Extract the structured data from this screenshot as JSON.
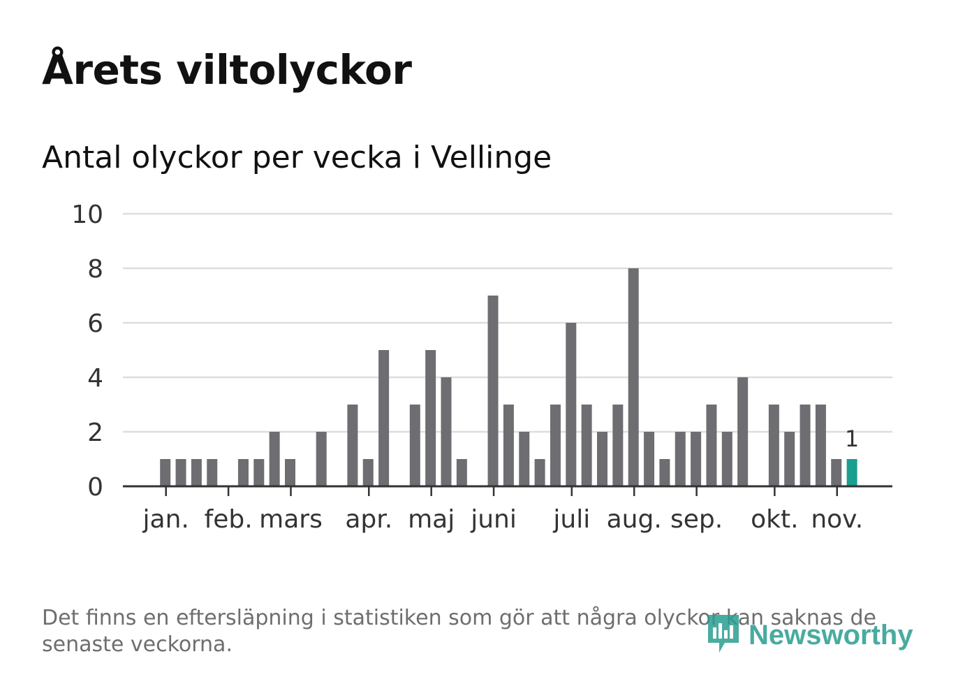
{
  "header": {
    "title": "Årets viltolyckor",
    "subtitle": "Antal olyckor per vecka i Vellinge"
  },
  "footnote": "Det finns en eftersläpning i statistiken som gör att några olyckor kan saknas de senaste veckorna.",
  "brand": {
    "name": "Newsworthy",
    "icon": "newsworthy-logo-icon"
  },
  "colors": {
    "bar": "#6e6d72",
    "highlight": "#1a9e8f",
    "grid": "#dddddd",
    "axis": "#333333"
  },
  "chart_data": {
    "type": "bar",
    "title": "Antal olyckor per vecka i Vellinge",
    "xlabel": "",
    "ylabel": "",
    "ylim": [
      0,
      10
    ],
    "yticks": [
      "0",
      "2",
      "4",
      "6",
      "8",
      "10"
    ],
    "grid": true,
    "weeks": [
      1,
      2,
      3,
      4,
      5,
      6,
      7,
      8,
      9,
      10,
      11,
      12,
      13,
      14,
      15,
      16,
      17,
      18,
      19,
      20,
      21,
      22,
      23,
      24,
      25,
      26,
      27,
      28,
      29,
      30,
      31,
      32,
      33,
      34,
      35,
      36,
      37,
      38,
      39,
      40,
      41,
      42,
      43,
      44,
      45,
      46
    ],
    "values": [
      0,
      0,
      1,
      1,
      1,
      1,
      0,
      1,
      1,
      2,
      1,
      0,
      2,
      0,
      3,
      1,
      5,
      0,
      3,
      5,
      4,
      1,
      0,
      7,
      3,
      2,
      1,
      3,
      6,
      3,
      2,
      3,
      8,
      2,
      1,
      2,
      2,
      3,
      2,
      4,
      0,
      3,
      2,
      3,
      3,
      1
    ],
    "highlight": {
      "week": 47,
      "value": 1,
      "label": "1"
    },
    "month_labels": [
      {
        "label": "jan.",
        "week": 3
      },
      {
        "label": "feb.",
        "week": 7
      },
      {
        "label": "mars",
        "week": 11
      },
      {
        "label": "apr.",
        "week": 16
      },
      {
        "label": "maj",
        "week": 20
      },
      {
        "label": "juni",
        "week": 24
      },
      {
        "label": "juli",
        "week": 29
      },
      {
        "label": "aug.",
        "week": 33
      },
      {
        "label": "sep.",
        "week": 37
      },
      {
        "label": "okt.",
        "week": 42
      },
      {
        "label": "nov.",
        "week": 46
      }
    ]
  }
}
